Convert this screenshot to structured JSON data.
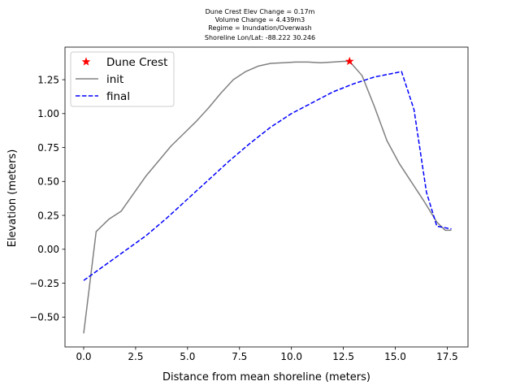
{
  "chart_data": {
    "type": "line",
    "title_lines": [
      "Dune Crest Elev Change = 0.17m",
      "Volume Change = 4.439m3",
      "Regime = Inundation/Overwash",
      "Shoreline Lon/Lat: -88.222 30.246"
    ],
    "xlabel": "Distance from mean shoreline (meters)",
    "ylabel": "Elevation (meters)",
    "xlim": [
      -0.9,
      18.5
    ],
    "ylim": [
      -0.72,
      1.49
    ],
    "xticks": [
      0.0,
      2.5,
      5.0,
      7.5,
      10.0,
      12.5,
      15.0,
      17.5
    ],
    "xtick_labels": [
      "0.0",
      "2.5",
      "5.0",
      "7.5",
      "10.0",
      "12.5",
      "15.0",
      "17.5"
    ],
    "yticks": [
      -0.5,
      -0.25,
      0.0,
      0.25,
      0.5,
      0.75,
      1.0,
      1.25
    ],
    "ytick_labels": [
      "−0.50",
      "−0.25",
      "0.00",
      "0.25",
      "0.50",
      "0.75",
      "1.00",
      "1.25"
    ],
    "grid": false,
    "legend_position": "upper-left",
    "series": [
      {
        "name": "init",
        "color": "#808080",
        "style": "solid",
        "x": [
          0.0,
          0.6,
          1.2,
          1.8,
          2.4,
          3.0,
          3.6,
          4.2,
          4.8,
          5.4,
          6.0,
          6.6,
          7.2,
          7.8,
          8.4,
          9.0,
          9.6,
          10.2,
          10.8,
          11.4,
          12.0,
          12.5,
          12.8,
          13.4,
          14.0,
          14.6,
          15.2,
          15.8,
          16.4,
          17.0,
          17.4,
          17.7
        ],
        "y": [
          -0.62,
          0.13,
          0.22,
          0.28,
          0.41,
          0.54,
          0.65,
          0.76,
          0.85,
          0.94,
          1.04,
          1.15,
          1.25,
          1.31,
          1.35,
          1.37,
          1.375,
          1.38,
          1.38,
          1.375,
          1.38,
          1.385,
          1.385,
          1.28,
          1.05,
          0.8,
          0.63,
          0.49,
          0.35,
          0.2,
          0.14,
          0.14
        ]
      },
      {
        "name": "final",
        "color": "#0000ff",
        "style": "dashed",
        "x": [
          0.0,
          1.0,
          2.0,
          3.0,
          4.0,
          5.0,
          6.0,
          7.0,
          8.0,
          9.0,
          10.0,
          11.0,
          12.0,
          13.0,
          14.0,
          15.0,
          15.3,
          15.9,
          16.5,
          17.0,
          17.7
        ],
        "y": [
          -0.23,
          -0.12,
          -0.01,
          0.1,
          0.23,
          0.37,
          0.51,
          0.65,
          0.78,
          0.9,
          1.0,
          1.08,
          1.16,
          1.22,
          1.27,
          1.3,
          1.31,
          1.03,
          0.42,
          0.17,
          0.15
        ]
      }
    ],
    "markers": [
      {
        "name": "Dune Crest",
        "color": "#ff0000",
        "symbol": "star",
        "x": 12.8,
        "y": 1.385
      }
    ],
    "legend": [
      {
        "label": "Dune Crest",
        "kind": "marker",
        "color": "#ff0000"
      },
      {
        "label": "init",
        "kind": "line",
        "color": "#808080",
        "style": "solid"
      },
      {
        "label": "final",
        "kind": "line",
        "color": "#0000ff",
        "style": "dashed"
      }
    ]
  }
}
